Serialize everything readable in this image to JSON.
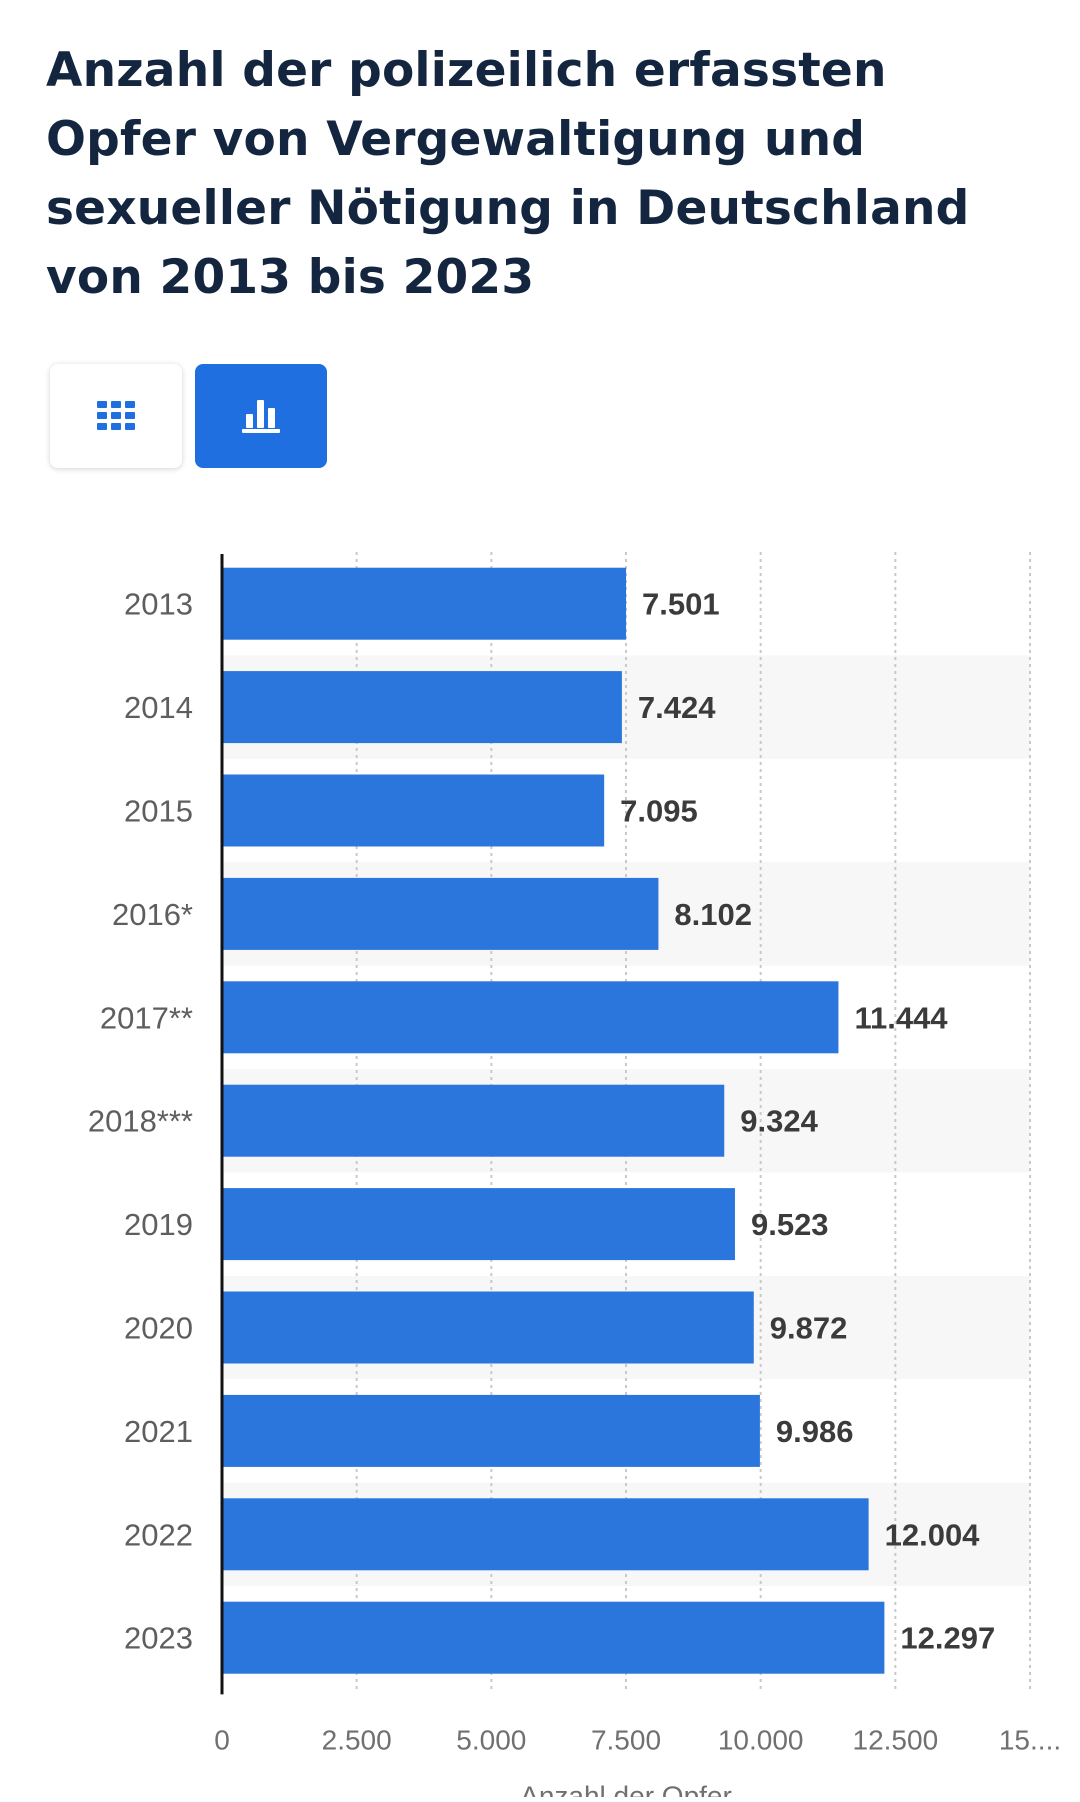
{
  "title": "Anzahl der polizeilich erfassten Opfer von Vergewaltigung und sexueller Nötigung in Deutschland von 2013 bis 2023",
  "view_toggle": {
    "table_icon": "table-grid-icon",
    "chart_icon": "bar-chart-icon",
    "active": "chart",
    "active_color": "#1f6fe0"
  },
  "chart_data": {
    "type": "bar",
    "orientation": "horizontal",
    "categories": [
      "2013",
      "2014",
      "2015",
      "2016*",
      "2017**",
      "2018***",
      "2019",
      "2020",
      "2021",
      "2022",
      "2023"
    ],
    "values": [
      7501,
      7424,
      7095,
      8102,
      11444,
      9324,
      9523,
      9872,
      9986,
      12004,
      12297
    ],
    "value_labels": [
      "7.501",
      "7.424",
      "7.095",
      "8.102",
      "11.444",
      "9.324",
      "9.523",
      "9.872",
      "9.986",
      "12.004",
      "12.297"
    ],
    "xlabel": "Anzahl der Opfer",
    "ylabel": "",
    "xlim": [
      0,
      15000
    ],
    "x_ticks": [
      0,
      2500,
      5000,
      7500,
      10000,
      12500,
      15000
    ],
    "x_tick_labels": [
      "0",
      "2.500",
      "5.000",
      "7.500",
      "10.000",
      "12.500",
      "15...."
    ],
    "grid": true,
    "bar_color": "#2a76dd",
    "alternate_row_shading": true
  }
}
